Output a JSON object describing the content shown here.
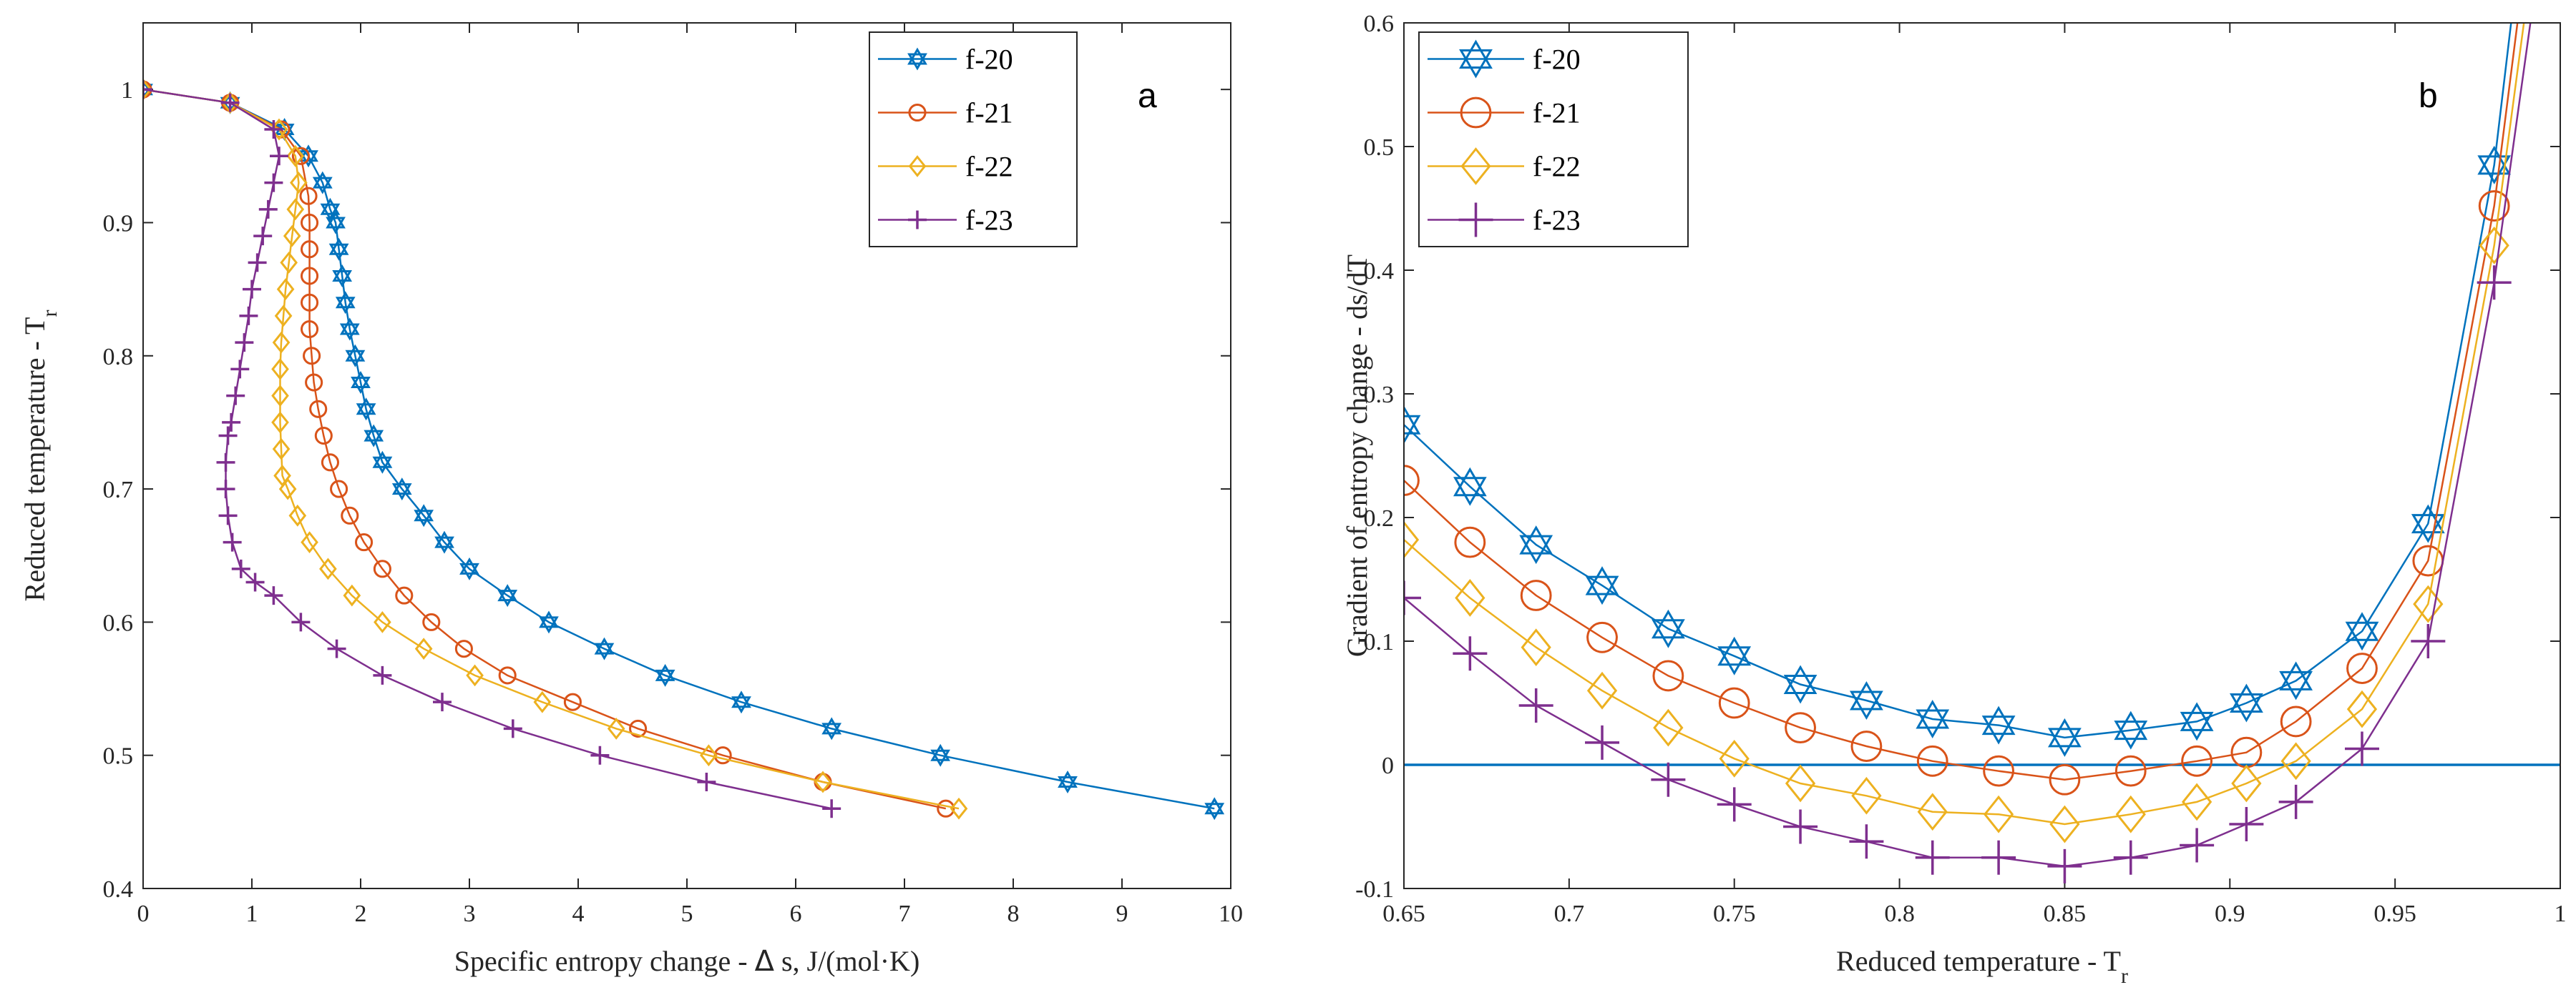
{
  "colors": {
    "f-20": "#0072BD",
    "f-21": "#D95319",
    "f-22": "#EDB120",
    "f-23": "#7E2F8E",
    "zero_line": "#0072BD",
    "axes": "#262626"
  },
  "chart_data": [
    {
      "id": "a",
      "type": "line",
      "panel_label": "a",
      "xlabel_main": "Specific entropy change - ",
      "xlabel_symbol": "Δ",
      "xlabel_rest": " s, J/(mol·K)",
      "ylabel_main": "Reduced temperature - T",
      "ylabel_sub": "r",
      "xlim": [
        0,
        10
      ],
      "ylim": [
        0.4,
        1.05
      ],
      "xticks": [
        0,
        1,
        2,
        3,
        4,
        5,
        6,
        7,
        8,
        9,
        10
      ],
      "yticks": [
        0.4,
        0.5,
        0.6,
        0.7,
        0.8,
        0.9,
        1
      ],
      "grid": false,
      "legend_position": "top-right",
      "series": [
        {
          "name": "f-20",
          "marker": "hexagram",
          "points": [
            [
              0,
              1.0
            ],
            [
              0.8,
              0.99
            ],
            [
              1.3,
              0.97
            ],
            [
              1.52,
              0.95
            ],
            [
              1.65,
              0.93
            ],
            [
              1.72,
              0.91
            ],
            [
              1.77,
              0.9
            ],
            [
              1.8,
              0.88
            ],
            [
              1.83,
              0.86
            ],
            [
              1.86,
              0.84
            ],
            [
              1.9,
              0.82
            ],
            [
              1.95,
              0.8
            ],
            [
              2.0,
              0.78
            ],
            [
              2.05,
              0.76
            ],
            [
              2.12,
              0.74
            ],
            [
              2.2,
              0.72
            ],
            [
              2.38,
              0.7
            ],
            [
              2.58,
              0.68
            ],
            [
              2.77,
              0.66
            ],
            [
              3.0,
              0.64
            ],
            [
              3.35,
              0.62
            ],
            [
              3.73,
              0.6
            ],
            [
              4.24,
              0.58
            ],
            [
              4.8,
              0.56
            ],
            [
              5.5,
              0.54
            ],
            [
              6.33,
              0.52
            ],
            [
              7.33,
              0.5
            ],
            [
              8.5,
              0.48
            ],
            [
              9.85,
              0.46
            ]
          ]
        },
        {
          "name": "f-21",
          "marker": "circle",
          "points": [
            [
              0,
              1.0
            ],
            [
              0.8,
              0.99
            ],
            [
              1.27,
              0.97
            ],
            [
              1.45,
              0.95
            ],
            [
              1.52,
              0.92
            ],
            [
              1.53,
              0.9
            ],
            [
              1.53,
              0.88
            ],
            [
              1.53,
              0.86
            ],
            [
              1.53,
              0.84
            ],
            [
              1.53,
              0.82
            ],
            [
              1.55,
              0.8
            ],
            [
              1.57,
              0.78
            ],
            [
              1.61,
              0.76
            ],
            [
              1.66,
              0.74
            ],
            [
              1.72,
              0.72
            ],
            [
              1.8,
              0.7
            ],
            [
              1.9,
              0.68
            ],
            [
              2.03,
              0.66
            ],
            [
              2.2,
              0.64
            ],
            [
              2.4,
              0.62
            ],
            [
              2.65,
              0.6
            ],
            [
              2.95,
              0.58
            ],
            [
              3.35,
              0.56
            ],
            [
              3.95,
              0.54
            ],
            [
              4.55,
              0.52
            ],
            [
              5.33,
              0.5
            ],
            [
              6.25,
              0.48
            ],
            [
              7.38,
              0.46
            ]
          ]
        },
        {
          "name": "f-22",
          "marker": "diamond",
          "points": [
            [
              0,
              1.0
            ],
            [
              0.8,
              0.99
            ],
            [
              1.25,
              0.97
            ],
            [
              1.4,
              0.95
            ],
            [
              1.43,
              0.93
            ],
            [
              1.4,
              0.91
            ],
            [
              1.37,
              0.89
            ],
            [
              1.34,
              0.87
            ],
            [
              1.31,
              0.85
            ],
            [
              1.29,
              0.83
            ],
            [
              1.27,
              0.81
            ],
            [
              1.26,
              0.79
            ],
            [
              1.26,
              0.77
            ],
            [
              1.26,
              0.75
            ],
            [
              1.27,
              0.73
            ],
            [
              1.28,
              0.71
            ],
            [
              1.33,
              0.7
            ],
            [
              1.42,
              0.68
            ],
            [
              1.53,
              0.66
            ],
            [
              1.7,
              0.64
            ],
            [
              1.92,
              0.62
            ],
            [
              2.2,
              0.6
            ],
            [
              2.58,
              0.58
            ],
            [
              3.05,
              0.56
            ],
            [
              3.67,
              0.54
            ],
            [
              4.35,
              0.52
            ],
            [
              5.2,
              0.5
            ],
            [
              6.25,
              0.48
            ],
            [
              7.5,
              0.46
            ]
          ]
        },
        {
          "name": "f-23",
          "marker": "plus",
          "points": [
            [
              0,
              1.0
            ],
            [
              0.8,
              0.99
            ],
            [
              1.2,
              0.97
            ],
            [
              1.25,
              0.95
            ],
            [
              1.2,
              0.93
            ],
            [
              1.15,
              0.91
            ],
            [
              1.1,
              0.89
            ],
            [
              1.05,
              0.87
            ],
            [
              1.0,
              0.85
            ],
            [
              0.97,
              0.83
            ],
            [
              0.93,
              0.81
            ],
            [
              0.89,
              0.79
            ],
            [
              0.85,
              0.77
            ],
            [
              0.81,
              0.75
            ],
            [
              0.78,
              0.74
            ],
            [
              0.76,
              0.72
            ],
            [
              0.76,
              0.7
            ],
            [
              0.78,
              0.68
            ],
            [
              0.82,
              0.66
            ],
            [
              0.9,
              0.64
            ],
            [
              1.03,
              0.63
            ],
            [
              1.2,
              0.62
            ],
            [
              1.45,
              0.6
            ],
            [
              1.78,
              0.58
            ],
            [
              2.2,
              0.56
            ],
            [
              2.75,
              0.54
            ],
            [
              3.4,
              0.52
            ],
            [
              4.2,
              0.5
            ],
            [
              5.18,
              0.48
            ],
            [
              6.33,
              0.46
            ]
          ]
        }
      ]
    },
    {
      "id": "b",
      "type": "line",
      "panel_label": "b",
      "xlabel_main": "Reduced temperature - T",
      "xlabel_sub": "r",
      "ylabel": "Gradient of entropy change - ds/dT",
      "xlim": [
        0.65,
        1.0
      ],
      "ylim": [
        -0.1,
        0.6
      ],
      "xticks": [
        0.65,
        0.7,
        0.75,
        0.8,
        0.85,
        0.9,
        0.95,
        1
      ],
      "yticks": [
        -0.1,
        0,
        0.1,
        0.2,
        0.3,
        0.4,
        0.5,
        0.6
      ],
      "grid": false,
      "legend_position": "top-left",
      "reference_line_y": 0,
      "series": [
        {
          "name": "f-20",
          "marker": "hexagram",
          "points": [
            [
              0.65,
              0.275
            ],
            [
              0.67,
              0.225
            ],
            [
              0.69,
              0.178
            ],
            [
              0.71,
              0.145
            ],
            [
              0.73,
              0.11
            ],
            [
              0.75,
              0.088
            ],
            [
              0.77,
              0.065
            ],
            [
              0.79,
              0.052
            ],
            [
              0.81,
              0.037
            ],
            [
              0.83,
              0.032
            ],
            [
              0.85,
              0.022
            ],
            [
              0.87,
              0.028
            ],
            [
              0.89,
              0.035
            ],
            [
              0.905,
              0.05
            ],
            [
              0.92,
              0.068
            ],
            [
              0.94,
              0.108
            ],
            [
              0.96,
              0.195
            ],
            [
              0.98,
              0.485
            ],
            [
              0.986,
              0.62
            ]
          ]
        },
        {
          "name": "f-21",
          "marker": "circle",
          "points": [
            [
              0.65,
              0.23
            ],
            [
              0.67,
              0.18
            ],
            [
              0.69,
              0.137
            ],
            [
              0.71,
              0.103
            ],
            [
              0.73,
              0.072
            ],
            [
              0.75,
              0.05
            ],
            [
              0.77,
              0.03
            ],
            [
              0.79,
              0.015
            ],
            [
              0.81,
              0.003
            ],
            [
              0.83,
              -0.005
            ],
            [
              0.85,
              -0.012
            ],
            [
              0.87,
              -0.005
            ],
            [
              0.89,
              0.003
            ],
            [
              0.905,
              0.01
            ],
            [
              0.92,
              0.035
            ],
            [
              0.94,
              0.078
            ],
            [
              0.96,
              0.165
            ],
            [
              0.98,
              0.452
            ],
            [
              0.988,
              0.62
            ]
          ]
        },
        {
          "name": "f-22",
          "marker": "diamond",
          "points": [
            [
              0.65,
              0.182
            ],
            [
              0.67,
              0.135
            ],
            [
              0.69,
              0.095
            ],
            [
              0.71,
              0.06
            ],
            [
              0.73,
              0.03
            ],
            [
              0.75,
              0.005
            ],
            [
              0.77,
              -0.015
            ],
            [
              0.79,
              -0.025
            ],
            [
              0.81,
              -0.038
            ],
            [
              0.83,
              -0.04
            ],
            [
              0.85,
              -0.048
            ],
            [
              0.87,
              -0.04
            ],
            [
              0.89,
              -0.03
            ],
            [
              0.905,
              -0.015
            ],
            [
              0.92,
              0.003
            ],
            [
              0.94,
              0.045
            ],
            [
              0.96,
              0.13
            ],
            [
              0.98,
              0.42
            ],
            [
              0.99,
              0.62
            ]
          ]
        },
        {
          "name": "f-23",
          "marker": "plus",
          "points": [
            [
              0.65,
              0.135
            ],
            [
              0.67,
              0.09
            ],
            [
              0.69,
              0.048
            ],
            [
              0.71,
              0.018
            ],
            [
              0.73,
              -0.012
            ],
            [
              0.75,
              -0.032
            ],
            [
              0.77,
              -0.05
            ],
            [
              0.79,
              -0.062
            ],
            [
              0.81,
              -0.075
            ],
            [
              0.83,
              -0.075
            ],
            [
              0.85,
              -0.082
            ],
            [
              0.87,
              -0.075
            ],
            [
              0.89,
              -0.065
            ],
            [
              0.905,
              -0.048
            ],
            [
              0.92,
              -0.03
            ],
            [
              0.94,
              0.013
            ],
            [
              0.96,
              0.1
            ],
            [
              0.98,
              0.39
            ],
            [
              0.992,
              0.62
            ]
          ]
        }
      ]
    }
  ]
}
